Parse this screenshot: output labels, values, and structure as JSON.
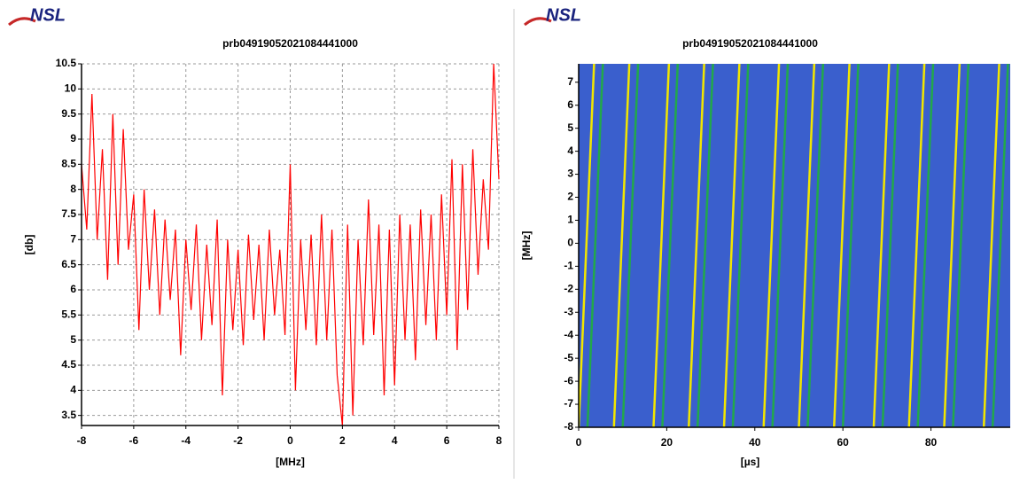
{
  "chart_data": [
    {
      "type": "line",
      "logo": "NSL",
      "title": "prb04919052021084441000",
      "x_label": "[MHz]",
      "y_label": "[db]",
      "x": [
        -8.0,
        -7.8,
        -7.6,
        -7.4,
        -7.2,
        -7.0,
        -6.8,
        -6.6,
        -6.4,
        -6.2,
        -6.0,
        -5.8,
        -5.6,
        -5.4,
        -5.2,
        -5.0,
        -4.8,
        -4.6,
        -4.4,
        -4.2,
        -4.0,
        -3.8,
        -3.6,
        -3.4,
        -3.2,
        -3.0,
        -2.8,
        -2.6,
        -2.4,
        -2.2,
        -2.0,
        -1.8,
        -1.6,
        -1.4,
        -1.2,
        -1.0,
        -0.8,
        -0.6,
        -0.4,
        -0.2,
        0,
        0.2,
        0.4,
        0.6,
        0.8,
        1.0,
        1.2,
        1.4,
        1.6,
        1.8,
        2.0,
        2.2,
        2.4,
        2.6,
        2.8,
        3.0,
        3.2,
        3.4,
        3.6,
        3.8,
        4.0,
        4.2,
        4.4,
        4.6,
        4.8,
        5.0,
        5.2,
        5.4,
        5.6,
        5.8,
        6.0,
        6.2,
        6.4,
        6.6,
        6.8,
        7.0,
        7.2,
        7.4,
        7.6,
        7.8,
        8.0
      ],
      "values": [
        8.5,
        7.2,
        9.9,
        7.0,
        8.8,
        6.2,
        9.5,
        6.5,
        9.2,
        6.8,
        7.9,
        5.2,
        8.0,
        6.0,
        7.6,
        5.5,
        7.4,
        5.8,
        7.2,
        4.7,
        7.0,
        5.6,
        7.3,
        5.0,
        6.9,
        5.3,
        7.4,
        3.9,
        7.0,
        5.2,
        6.8,
        4.9,
        7.1,
        5.4,
        6.9,
        5.0,
        7.2,
        5.5,
        6.8,
        5.1,
        8.5,
        4.0,
        7.0,
        5.2,
        7.1,
        4.9,
        7.5,
        5.0,
        7.2,
        4.3,
        3.3,
        7.3,
        3.5,
        7.0,
        4.9,
        7.8,
        5.1,
        7.3,
        3.9,
        7.2,
        4.1,
        7.5,
        5.0,
        7.3,
        4.6,
        7.6,
        5.3,
        7.5,
        5.0,
        7.9,
        5.5,
        8.6,
        4.8,
        8.5,
        5.6,
        8.8,
        6.3,
        8.2,
        6.8,
        10.5,
        8.2
      ],
      "color": "#ff0000",
      "xlim": [
        -8,
        8
      ],
      "ylim": [
        3.3,
        10.5
      ],
      "xticks": [
        -8,
        -6,
        -4,
        -2,
        0,
        2,
        4,
        6,
        8
      ],
      "yticks": [
        3.5,
        4,
        4.5,
        5,
        5.5,
        6,
        6.5,
        7,
        7.5,
        8,
        8.5,
        9,
        9.5,
        10,
        10.5
      ],
      "grid": true
    },
    {
      "type": "chirp",
      "logo": "NSL",
      "title": "prb04919052021084441000",
      "x_label": "[µs]",
      "y_label": "[MHz]",
      "background": "#3a5fcd",
      "xlim": [
        0,
        98
      ],
      "ylim": [
        -8,
        7.8
      ],
      "xticks": [
        0,
        20,
        40,
        60,
        80
      ],
      "yticks": [
        -8,
        -7,
        -6,
        -5,
        -4,
        -3,
        -2,
        -1,
        0,
        1,
        2,
        3,
        4,
        5,
        6,
        7
      ],
      "series": [
        {
          "x": [
            0,
            3.5
          ],
          "values": [
            -8,
            7.8
          ],
          "color": "#f2e600"
        },
        {
          "x": [
            2,
            5.5
          ],
          "values": [
            -8,
            7.8
          ],
          "color": "#22a84a"
        },
        {
          "x": [
            8,
            11.5
          ],
          "values": [
            -8,
            7.8
          ],
          "color": "#f2e600"
        },
        {
          "x": [
            10,
            13.5
          ],
          "values": [
            -8,
            7.8
          ],
          "color": "#22a84a"
        },
        {
          "x": [
            17,
            20.5
          ],
          "values": [
            -8,
            7.8
          ],
          "color": "#f2e600"
        },
        {
          "x": [
            19,
            22.5
          ],
          "values": [
            -8,
            7.8
          ],
          "color": "#22a84a"
        },
        {
          "x": [
            25,
            28.5
          ],
          "values": [
            -8,
            7.8
          ],
          "color": "#f2e600"
        },
        {
          "x": [
            27,
            30.5
          ],
          "values": [
            -8,
            7.8
          ],
          "color": "#22a84a"
        },
        {
          "x": [
            33,
            36.5
          ],
          "values": [
            -8,
            7.8
          ],
          "color": "#f2e600"
        },
        {
          "x": [
            35,
            38.5
          ],
          "values": [
            -8,
            7.8
          ],
          "color": "#22a84a"
        },
        {
          "x": [
            42,
            45.5
          ],
          "values": [
            -8,
            7.8
          ],
          "color": "#f2e600"
        },
        {
          "x": [
            44,
            47.5
          ],
          "values": [
            -8,
            7.8
          ],
          "color": "#22a84a"
        },
        {
          "x": [
            50,
            53.5
          ],
          "values": [
            -8,
            7.8
          ],
          "color": "#f2e600"
        },
        {
          "x": [
            52,
            55.5
          ],
          "values": [
            -8,
            7.8
          ],
          "color": "#22a84a"
        },
        {
          "x": [
            58,
            61.5
          ],
          "values": [
            -8,
            7.8
          ],
          "color": "#f2e600"
        },
        {
          "x": [
            60,
            63.5
          ],
          "values": [
            -8,
            7.8
          ],
          "color": "#22a84a"
        },
        {
          "x": [
            67,
            70.5
          ],
          "values": [
            -8,
            7.8
          ],
          "color": "#f2e600"
        },
        {
          "x": [
            69,
            72.5
          ],
          "values": [
            -8,
            7.8
          ],
          "color": "#22a84a"
        },
        {
          "x": [
            75,
            78.5
          ],
          "values": [
            -8,
            7.8
          ],
          "color": "#f2e600"
        },
        {
          "x": [
            77,
            80.5
          ],
          "values": [
            -8,
            7.8
          ],
          "color": "#22a84a"
        },
        {
          "x": [
            83,
            86.5
          ],
          "values": [
            -8,
            7.8
          ],
          "color": "#f2e600"
        },
        {
          "x": [
            85,
            88.5
          ],
          "values": [
            -8,
            7.8
          ],
          "color": "#22a84a"
        },
        {
          "x": [
            92,
            95.5
          ],
          "values": [
            -8,
            7.8
          ],
          "color": "#f2e600"
        },
        {
          "x": [
            94,
            97.5
          ],
          "values": [
            -8,
            7.8
          ],
          "color": "#22a84a"
        }
      ]
    }
  ]
}
